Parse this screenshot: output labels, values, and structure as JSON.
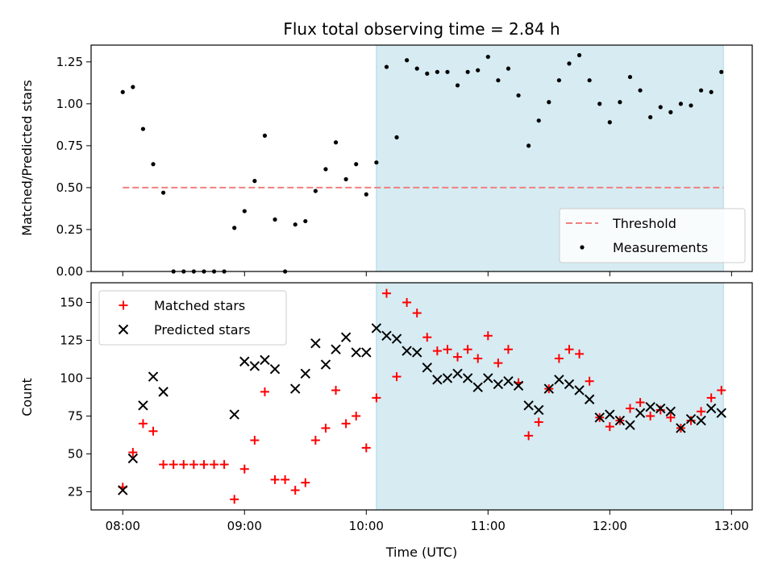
{
  "chart_data": [
    {
      "type": "scatter",
      "title": "Flux total observing time = 2.84 h",
      "ylabel": "Matched/Predicted stars",
      "xlim": [
        -0.26,
        5.17
      ],
      "ylim": [
        0,
        1.35
      ],
      "yticks": [
        0.0,
        0.25,
        0.5,
        0.75,
        1.0,
        1.25
      ],
      "ytick_labels": [
        "0.00",
        "0.25",
        "0.50",
        "0.75",
        "1.00",
        "1.25"
      ],
      "shaded_region": {
        "x_start": 2.0833,
        "x_end": 4.9333,
        "color": "#add8e6"
      },
      "legend_position": "lower-right",
      "threshold": {
        "name": "Threshold",
        "value": 0.5,
        "x_start": 0.0,
        "x_end": 4.9333,
        "color": "#f08080"
      },
      "series": [
        {
          "name": "Measurements",
          "color": "#000000",
          "x": [
            0.0,
            0.0833,
            0.1667,
            0.25,
            0.3333,
            0.4167,
            0.5,
            0.5833,
            0.6667,
            0.75,
            0.8333,
            0.9167,
            1.0,
            1.0833,
            1.1667,
            1.25,
            1.3333,
            1.4167,
            1.5,
            1.5833,
            1.6667,
            1.75,
            1.8333,
            1.9167,
            2.0,
            2.0833,
            2.1667,
            2.25,
            2.3333,
            2.4167,
            2.5,
            2.5833,
            2.6667,
            2.75,
            2.8333,
            2.9167,
            3.0,
            3.0833,
            3.1667,
            3.25,
            3.3333,
            3.4167,
            3.5,
            3.5833,
            3.6667,
            3.75,
            3.8333,
            3.9167,
            4.0,
            4.0833,
            4.1667,
            4.25,
            4.3333,
            4.4167,
            4.5,
            4.5833,
            4.6667,
            4.75,
            4.8333,
            4.9167
          ],
          "y": [
            1.07,
            1.1,
            0.85,
            0.64,
            0.47,
            0.0,
            0.0,
            0.0,
            0.0,
            0.0,
            0.0,
            0.26,
            0.36,
            0.54,
            0.81,
            0.31,
            0.0,
            0.28,
            0.3,
            0.48,
            0.61,
            0.77,
            0.55,
            0.64,
            0.46,
            0.65,
            1.22,
            0.8,
            1.26,
            1.21,
            1.18,
            1.19,
            1.19,
            1.11,
            1.19,
            1.2,
            1.28,
            1.14,
            1.21,
            1.05,
            0.75,
            0.9,
            1.01,
            1.14,
            1.24,
            1.29,
            1.14,
            1.0,
            0.89,
            1.01,
            1.16,
            1.08,
            0.92,
            0.98,
            0.95,
            1.0,
            0.99,
            1.08,
            1.07,
            1.19
          ]
        }
      ]
    },
    {
      "type": "scatter",
      "xlabel": "Time (UTC)",
      "ylabel": "Count",
      "xlim": [
        -0.26,
        5.17
      ],
      "ylim": [
        13,
        163
      ],
      "xticks": [
        0,
        1,
        2,
        3,
        4,
        5
      ],
      "xtick_labels": [
        "08:00",
        "09:00",
        "10:00",
        "11:00",
        "12:00",
        "13:00"
      ],
      "yticks": [
        25,
        50,
        75,
        100,
        125,
        150
      ],
      "ytick_labels": [
        "25",
        "50",
        "75",
        "100",
        "125",
        "150"
      ],
      "shaded_region": {
        "x_start": 2.0833,
        "x_end": 4.9333,
        "color": "#add8e6"
      },
      "legend_position": "upper-left",
      "series": [
        {
          "name": "Matched stars",
          "marker": "plus",
          "color": "#ff0000",
          "x": [
            0.0,
            0.0833,
            0.1667,
            0.25,
            0.3333,
            0.4167,
            0.5,
            0.5833,
            0.6667,
            0.75,
            0.8333,
            0.9167,
            1.0,
            1.0833,
            1.1667,
            1.25,
            1.3333,
            1.4167,
            1.5,
            1.5833,
            1.6667,
            1.75,
            1.8333,
            1.9167,
            2.0,
            2.0833,
            2.1667,
            2.25,
            2.3333,
            2.4167,
            2.5,
            2.5833,
            2.6667,
            2.75,
            2.8333,
            2.9167,
            3.0,
            3.0833,
            3.1667,
            3.25,
            3.3333,
            3.4167,
            3.5,
            3.5833,
            3.6667,
            3.75,
            3.8333,
            3.9167,
            4.0,
            4.0833,
            4.1667,
            4.25,
            4.3333,
            4.4167,
            4.5,
            4.5833,
            4.6667,
            4.75,
            4.8333,
            4.9167
          ],
          "y": [
            28,
            51,
            70,
            65,
            43,
            43,
            43,
            43,
            43,
            43,
            43,
            20,
            40,
            59,
            91,
            33,
            33,
            26,
            31,
            59,
            67,
            92,
            70,
            75,
            54,
            87,
            156,
            101,
            150,
            143,
            127,
            118,
            119,
            114,
            119,
            113,
            128,
            110,
            119,
            97,
            62,
            71,
            93,
            113,
            119,
            116,
            98,
            74,
            68,
            72,
            80,
            84,
            75,
            79,
            74,
            67,
            72,
            78,
            87,
            92
          ]
        },
        {
          "name": "Predicted stars",
          "marker": "x",
          "color": "#000000",
          "x": [
            0.0,
            0.0833,
            0.1667,
            0.25,
            0.3333,
            0.9167,
            1.0,
            1.0833,
            1.1667,
            1.25,
            1.4167,
            1.5,
            1.5833,
            1.6667,
            1.75,
            1.8333,
            1.9167,
            2.0,
            2.0833,
            2.1667,
            2.25,
            2.3333,
            2.4167,
            2.5,
            2.5833,
            2.6667,
            2.75,
            2.8333,
            2.9167,
            3.0,
            3.0833,
            3.1667,
            3.25,
            3.3333,
            3.4167,
            3.5,
            3.5833,
            3.6667,
            3.75,
            3.8333,
            3.9167,
            4.0,
            4.0833,
            4.1667,
            4.25,
            4.3333,
            4.4167,
            4.5,
            4.5833,
            4.6667,
            4.75,
            4.8333,
            4.9167
          ],
          "y": [
            26,
            47,
            82,
            101,
            91,
            76,
            111,
            108,
            112,
            106,
            93,
            103,
            123,
            109,
            119,
            127,
            117,
            117,
            133,
            128,
            126,
            118,
            117,
            107,
            99,
            100,
            103,
            100,
            94,
            100,
            96,
            98,
            95,
            82,
            79,
            93,
            99,
            96,
            92,
            86,
            74,
            76,
            72,
            69,
            77,
            81,
            80,
            78,
            67,
            73,
            72,
            80,
            77
          ]
        }
      ]
    }
  ]
}
